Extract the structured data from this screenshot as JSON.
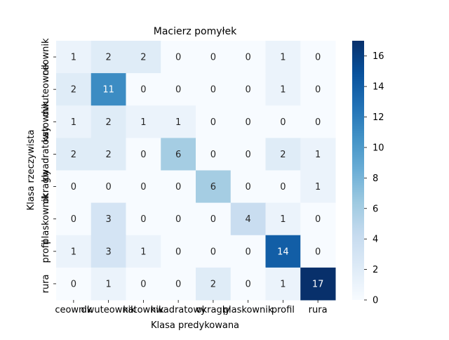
{
  "chart_data": {
    "type": "heatmap",
    "title": "Macierz pomyłek",
    "xlabel": "Klasa predykowana",
    "ylabel": "Klasa rzeczywista",
    "x_categories": [
      "ceownik",
      "dwuteownik",
      "katownik",
      "kwadratowy",
      "okragly",
      "plaskownik",
      "profil",
      "rura"
    ],
    "y_categories": [
      "ceownik",
      "dwuteownik",
      "katownik",
      "kwadratowy",
      "okragly",
      "plaskownik",
      "profil",
      "rura"
    ],
    "values": [
      [
        1,
        2,
        2,
        0,
        0,
        0,
        1,
        0
      ],
      [
        2,
        11,
        0,
        0,
        0,
        0,
        1,
        0
      ],
      [
        1,
        2,
        1,
        1,
        0,
        0,
        0,
        0
      ],
      [
        2,
        2,
        0,
        6,
        0,
        0,
        2,
        1
      ],
      [
        0,
        0,
        0,
        0,
        6,
        0,
        0,
        1
      ],
      [
        0,
        3,
        0,
        0,
        0,
        4,
        1,
        0
      ],
      [
        1,
        3,
        1,
        0,
        0,
        0,
        14,
        0
      ],
      [
        0,
        1,
        0,
        0,
        2,
        0,
        1,
        17
      ]
    ],
    "colorbar": {
      "range": [
        0,
        17
      ],
      "ticks": [
        "0",
        "2",
        "4",
        "6",
        "8",
        "10",
        "12",
        "14",
        "16"
      ],
      "colormap": "Blues"
    }
  }
}
